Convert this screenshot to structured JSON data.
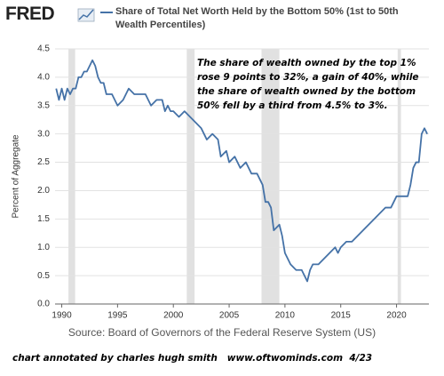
{
  "chart_data": {
    "type": "line",
    "logo": "FRED",
    "ylabel": "Percent of Aggregate",
    "annotation": [
      "The share of wealth owned by the top 1%",
      "rose 9 points to 32%, a gain of 40%, while",
      "the share of wealth owned by the bottom",
      "50% fell by a third from 4.5% to 3%."
    ],
    "source": "Source: Board of Governors of the Federal Reserve System (US)",
    "footer": "chart annotated by charles hugh smith   www.oftwominds.com  4/23",
    "xlim": [
      1989.4,
      2022.9
    ],
    "xticks": [
      1990,
      1995,
      2000,
      2005,
      2010,
      2015,
      2020
    ],
    "ylim": [
      0,
      4.5
    ],
    "yticks": [
      {
        "value": 0,
        "label": "0.0"
      },
      0.5,
      {
        "value": 1,
        "label": "1.0"
      },
      1.5,
      {
        "value": 2,
        "label": "2.0"
      },
      2.5,
      {
        "value": 3,
        "label": "3.0"
      },
      3.5,
      {
        "value": 4,
        "label": "4.0"
      },
      4.5
    ],
    "grid": true,
    "shaded_periods": [
      [
        1990.6,
        1991.2
      ],
      [
        2001.2,
        2001.9
      ],
      [
        2007.9,
        2009.5
      ],
      [
        2020.1,
        2020.4
      ]
    ],
    "shade_color": "#e1e1e1",
    "x": [
      1989.5,
      1989.75,
      1990.0,
      1990.25,
      1990.5,
      1990.75,
      1991.0,
      1991.25,
      1991.5,
      1991.75,
      1992.0,
      1992.25,
      1992.5,
      1992.75,
      1993.0,
      1993.25,
      1993.5,
      1993.75,
      1994.0,
      1994.5,
      1995.0,
      1995.5,
      1996.0,
      1996.5,
      1997.0,
      1997.5,
      1998.0,
      1998.5,
      1999.0,
      1999.25,
      1999.5,
      1999.75,
      2000.0,
      2000.5,
      2001.0,
      2001.5,
      2002.0,
      2002.5,
      2003.0,
      2003.5,
      2004.0,
      2004.25,
      2004.75,
      2005.0,
      2005.5,
      2006.0,
      2006.5,
      2007.0,
      2007.5,
      2008.0,
      2008.25,
      2008.5,
      2008.75,
      2009.0,
      2009.5,
      2009.75,
      2010.0,
      2010.5,
      2011.0,
      2011.5,
      2011.75,
      2012.0,
      2012.25,
      2012.5,
      2013.0,
      2013.5,
      2014.0,
      2014.5,
      2014.75,
      2015.0,
      2015.5,
      2016.0,
      2016.5,
      2017.0,
      2017.5,
      2018.0,
      2018.5,
      2019.0,
      2019.5,
      2020.0,
      2020.5,
      2021.0,
      2021.25,
      2021.5,
      2021.75,
      2022.0,
      2022.25,
      2022.5,
      2022.75
    ],
    "series": [
      {
        "name": "Share of Total Net Worth Held by the Bottom 50% (1st to 50th Wealth Percentiles)",
        "color": "#4572a7",
        "values": [
          3.8,
          3.6,
          3.8,
          3.6,
          3.8,
          3.7,
          3.8,
          3.8,
          4.0,
          4.0,
          4.1,
          4.1,
          4.2,
          4.3,
          4.2,
          4.0,
          3.9,
          3.9,
          3.7,
          3.7,
          3.5,
          3.6,
          3.8,
          3.7,
          3.7,
          3.7,
          3.5,
          3.6,
          3.6,
          3.4,
          3.5,
          3.4,
          3.4,
          3.3,
          3.4,
          3.3,
          3.2,
          3.1,
          2.9,
          3.0,
          2.9,
          2.6,
          2.7,
          2.5,
          2.6,
          2.4,
          2.5,
          2.3,
          2.3,
          2.1,
          1.8,
          1.8,
          1.7,
          1.3,
          1.4,
          1.2,
          0.9,
          0.7,
          0.6,
          0.6,
          0.5,
          0.4,
          0.6,
          0.7,
          0.7,
          0.8,
          0.9,
          1.0,
          0.9,
          1.0,
          1.1,
          1.1,
          1.2,
          1.3,
          1.4,
          1.5,
          1.6,
          1.7,
          1.7,
          1.9,
          1.9,
          1.9,
          2.1,
          2.4,
          2.5,
          2.5,
          3.0,
          3.1,
          3.0
        ]
      }
    ]
  }
}
